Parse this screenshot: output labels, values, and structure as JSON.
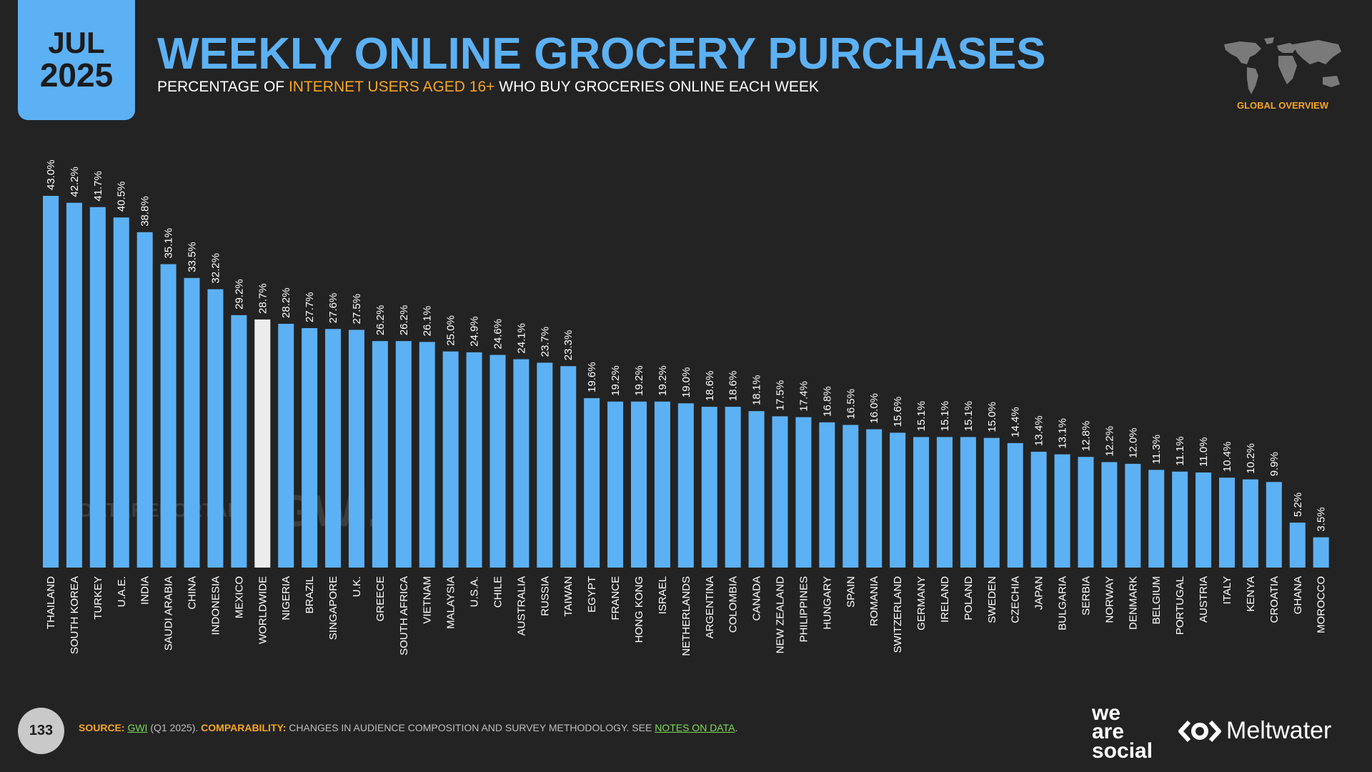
{
  "header": {
    "date_month": "JUL",
    "date_year": "2025",
    "title": "WEEKLY ONLINE GROCERY PURCHASES",
    "subtitle_pre": "PERCENTAGE OF ",
    "subtitle_highlight": "INTERNET USERS AGED 16+",
    "subtitle_post": " WHO BUY GROCERIES ONLINE EACH WEEK",
    "region_label": "GLOBAL OVERVIEW"
  },
  "watermarks": {
    "datareportal": "DATAREPORTAL",
    "gwi": "GWI."
  },
  "footer": {
    "page_number": "133",
    "source_label": "SOURCE:",
    "source_link": "GWI",
    "source_detail": " (Q1 2025). ",
    "comparability_label": "COMPARABILITY:",
    "comparability_text": " CHANGES IN AUDIENCE COMPOSITION AND SURVEY METHODOLOGY. SEE ",
    "notes_link": "NOTES ON DATA",
    "end": "."
  },
  "brands": {
    "we_are_social": [
      "we",
      "are",
      "social"
    ],
    "meltwater": "Meltwater"
  },
  "colors": {
    "bar": "#5cb1f4",
    "highlight_bar": "#ececec",
    "accent": "#f6a623",
    "link": "#7ed957"
  },
  "chart_data": {
    "type": "bar",
    "title": "WEEKLY ONLINE GROCERY PURCHASES",
    "highlight_category": "WORLDWIDE",
    "categories": [
      "THAILAND",
      "SOUTH KOREA",
      "TURKEY",
      "U.A.E.",
      "INDIA",
      "SAUDI ARABIA",
      "CHINA",
      "INDONESIA",
      "MEXICO",
      "WORLDWIDE",
      "NIGERIA",
      "BRAZIL",
      "SINGAPORE",
      "U.K.",
      "GREECE",
      "SOUTH AFRICA",
      "VIETNAM",
      "MALAYSIA",
      "U.S.A.",
      "CHILE",
      "AUSTRALIA",
      "RUSSIA",
      "TAIWAN",
      "EGYPT",
      "FRANCE",
      "HONG KONG",
      "ISRAEL",
      "NETHERLANDS",
      "ARGENTINA",
      "COLOMBIA",
      "CANADA",
      "NEW ZEALAND",
      "PHILIPPINES",
      "HUNGARY",
      "SPAIN",
      "ROMANIA",
      "SWITZERLAND",
      "GERMANY",
      "IRELAND",
      "POLAND",
      "SWEDEN",
      "CZECHIA",
      "JAPAN",
      "BULGARIA",
      "SERBIA",
      "NORWAY",
      "DENMARK",
      "BELGIUM",
      "PORTUGAL",
      "AUSTRIA",
      "ITALY",
      "KENYA",
      "CROATIA",
      "GHANA",
      "MOROCCO"
    ],
    "values": [
      43.0,
      42.2,
      41.7,
      40.5,
      38.8,
      35.1,
      33.5,
      32.2,
      29.2,
      28.7,
      28.2,
      27.7,
      27.6,
      27.5,
      26.2,
      26.2,
      26.1,
      25.0,
      24.9,
      24.6,
      24.1,
      23.7,
      23.3,
      19.6,
      19.2,
      19.2,
      19.2,
      19.0,
      18.6,
      18.6,
      18.1,
      17.5,
      17.4,
      16.8,
      16.5,
      16.0,
      15.6,
      15.1,
      15.1,
      15.1,
      15.0,
      14.4,
      13.4,
      13.1,
      12.8,
      12.2,
      12.0,
      11.3,
      11.1,
      11.0,
      10.4,
      10.2,
      9.9,
      5.2,
      3.5
    ],
    "labels": [
      "43.0%",
      "42.2%",
      "41.7%",
      "40.5%",
      "38.8%",
      "35.1%",
      "33.5%",
      "32.2%",
      "29.2%",
      "28.7%",
      "28.2%",
      "27.7%",
      "27.6%",
      "27.5%",
      "26.2%",
      "26.2%",
      "26.1%",
      "25.0%",
      "24.9%",
      "24.6%",
      "24.1%",
      "23.7%",
      "23.3%",
      "19.6%",
      "19.2%",
      "19.2%",
      "19.2%",
      "19.0%",
      "18.6%",
      "18.6%",
      "18.1%",
      "17.5%",
      "17.4%",
      "16.8%",
      "16.5%",
      "16.0%",
      "15.6%",
      "15.1%",
      "15.1%",
      "15.1%",
      "15.0%",
      "14.4%",
      "13.4%",
      "13.1%",
      "12.8%",
      "12.2%",
      "12.0%",
      "11.3%",
      "11.1%",
      "11.0%",
      "10.4%",
      "10.2%",
      "9.9%",
      "5.2%",
      "3.5%"
    ],
    "ylim": [
      0,
      43.0
    ],
    "grid": false
  }
}
